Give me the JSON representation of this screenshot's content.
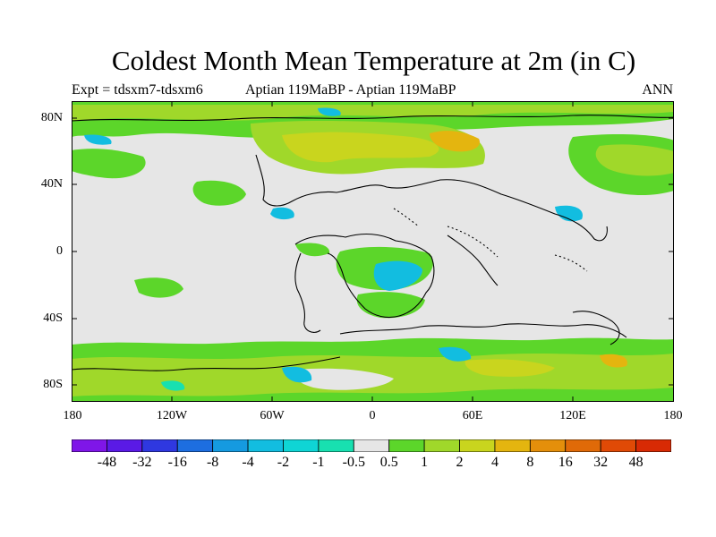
{
  "title": "Coldest Month Mean Temperature at 2m (in C)",
  "subtitle_left": "Expt = tdsxm7-tdsxm6",
  "subtitle_center": "Aptian   119MaBP - Aptian   119MaBP",
  "subtitle_right": "ANN",
  "y_ticks": [
    "80N",
    "40N",
    "0",
    "40S",
    "80S"
  ],
  "x_ticks": [
    "180",
    "120W",
    "60W",
    "0",
    "60E",
    "120E",
    "180"
  ],
  "colorbar": {
    "colors": [
      "#7f16e8",
      "#5a1ae6",
      "#2f38e0",
      "#1d6ee0",
      "#159ae0",
      "#12bde0",
      "#0fd5d5",
      "#18e0b0",
      "#e6e6e6",
      "#5cd62a",
      "#a0d82a",
      "#c9d51e",
      "#e4b50f",
      "#e48f0b",
      "#e06a08",
      "#e04a06",
      "#d82a04"
    ],
    "labels": [
      "-48",
      "-32",
      "-16",
      "-8",
      "-4",
      "-2",
      "-1",
      "-0.5",
      "0.5",
      "1",
      "2",
      "4",
      "8",
      "16",
      "32",
      "48"
    ]
  },
  "colors": {
    "background_field": "#e6e6e6",
    "green": "#5cd62a",
    "yellow_green": "#a0d82a",
    "olive": "#c9d51e",
    "orange": "#e4b50f",
    "cyan": "#12bde0",
    "teal": "#18e0b0"
  }
}
